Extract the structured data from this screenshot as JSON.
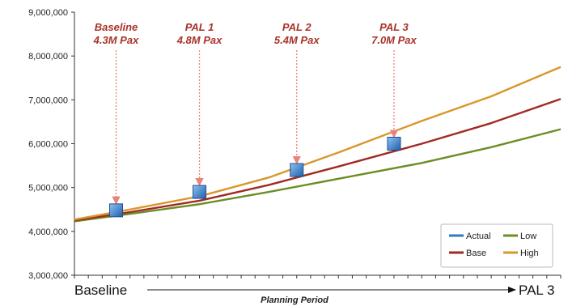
{
  "chart_data": {
    "type": "line",
    "title": "",
    "xlabel": "Planning Period",
    "ylabel": "",
    "x_start_label": "Baseline",
    "x_end_label": "PAL 3",
    "x": [
      0,
      1,
      2,
      3,
      4,
      5,
      6,
      7,
      8,
      9,
      10,
      11,
      12,
      13,
      14,
      15,
      16,
      17,
      18,
      19,
      20,
      21,
      22,
      23,
      24,
      25,
      26,
      27,
      28,
      29,
      30,
      31,
      32,
      33,
      34,
      35
    ],
    "xlim": [
      0,
      35
    ],
    "ylim": [
      3000000,
      9000000
    ],
    "yticks": [
      "3,000,000",
      "4,000,000",
      "5,000,000",
      "6,000,000",
      "7,000,000",
      "8,000,000",
      "9,000,000"
    ],
    "grid": false,
    "legend": {
      "position": "bottom-right",
      "entries": [
        {
          "name": "Actual",
          "color": "#2e7bc4"
        },
        {
          "name": "Low",
          "color": "#6b8e23"
        },
        {
          "name": "Base",
          "color": "#a12a22"
        },
        {
          "name": "High",
          "color": "#d9962b"
        }
      ]
    },
    "series": [
      {
        "name": "Actual",
        "color": "#2e7bc4",
        "points": []
      },
      {
        "name": "Low",
        "color": "#6b8e23",
        "points": [
          [
            0,
            4230000
          ],
          [
            4,
            4400000
          ],
          [
            9,
            4620000
          ],
          [
            14,
            4900000
          ],
          [
            19,
            5200000
          ],
          [
            25,
            5560000
          ],
          [
            30,
            5920000
          ],
          [
            35,
            6330000
          ]
        ]
      },
      {
        "name": "Base",
        "color": "#a12a22",
        "points": [
          [
            0,
            4250000
          ],
          [
            4,
            4440000
          ],
          [
            9,
            4700000
          ],
          [
            14,
            5060000
          ],
          [
            19,
            5480000
          ],
          [
            25,
            6000000
          ],
          [
            30,
            6470000
          ],
          [
            35,
            7020000
          ]
        ]
      },
      {
        "name": "High",
        "color": "#d9962b",
        "points": [
          [
            0,
            4270000
          ],
          [
            4,
            4500000
          ],
          [
            9,
            4800000
          ],
          [
            14,
            5230000
          ],
          [
            19,
            5800000
          ],
          [
            25,
            6520000
          ],
          [
            30,
            7080000
          ],
          [
            35,
            7750000
          ]
        ]
      }
    ],
    "milestones": [
      {
        "x": 3,
        "y": 4480000,
        "label1": "Baseline",
        "label2": "4.3M Pax"
      },
      {
        "x": 9,
        "y": 4900000,
        "label1": "PAL 1",
        "label2": "4.8M Pax"
      },
      {
        "x": 16,
        "y": 5400000,
        "label1": "PAL 2",
        "label2": "5.4M Pax"
      },
      {
        "x": 23,
        "y": 6000000,
        "label1": "PAL 3",
        "label2": "7.0M Pax"
      }
    ],
    "milestone_color": "#3a7fd0",
    "annotation_color": "#a8332a"
  }
}
